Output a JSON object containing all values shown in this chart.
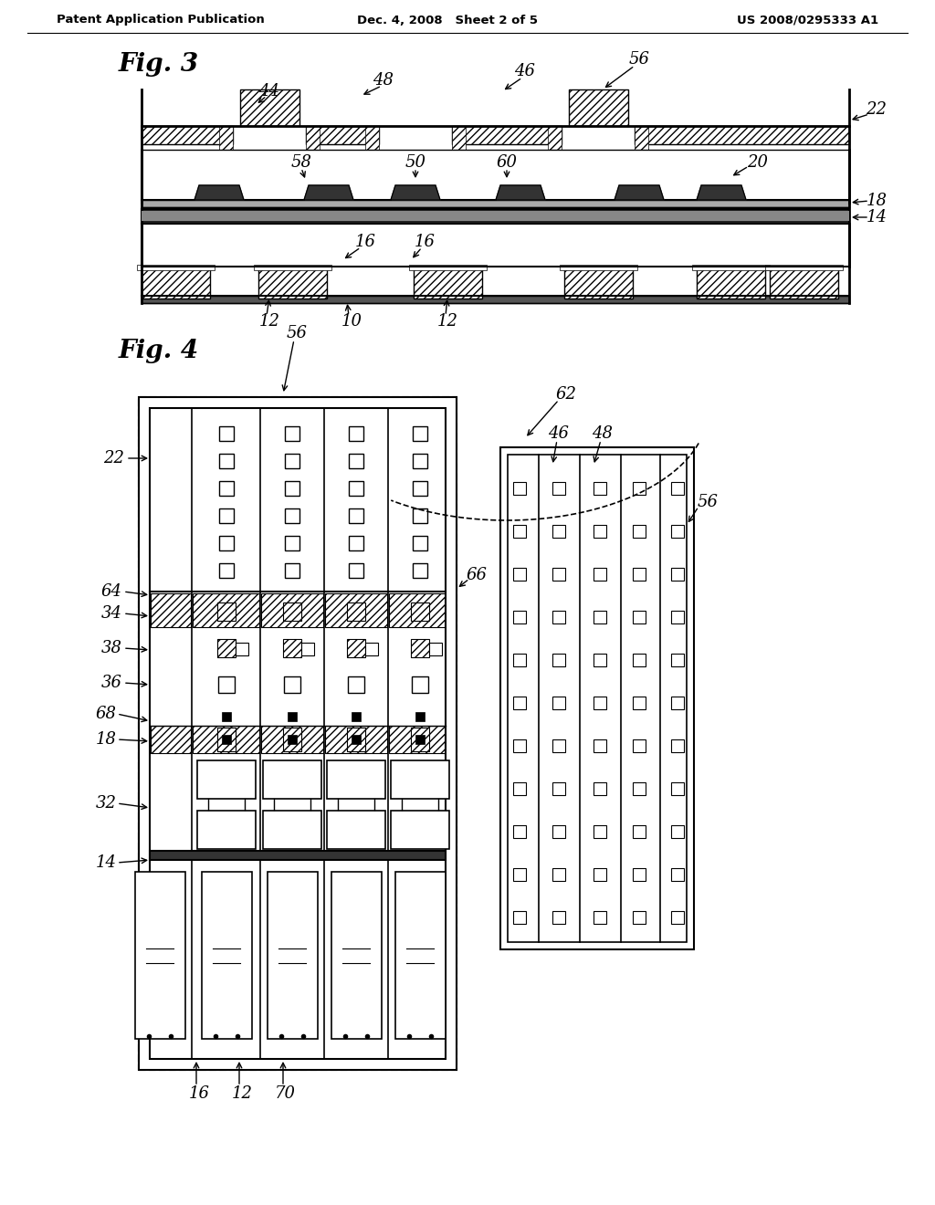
{
  "bg_color": "#ffffff",
  "header_left": "Patent Application Publication",
  "header_center": "Dec. 4, 2008   Sheet 2 of 5",
  "header_right": "US 2008/0295333 A1",
  "fig3_label": "Fig. 3",
  "fig4_label": "Fig. 4"
}
